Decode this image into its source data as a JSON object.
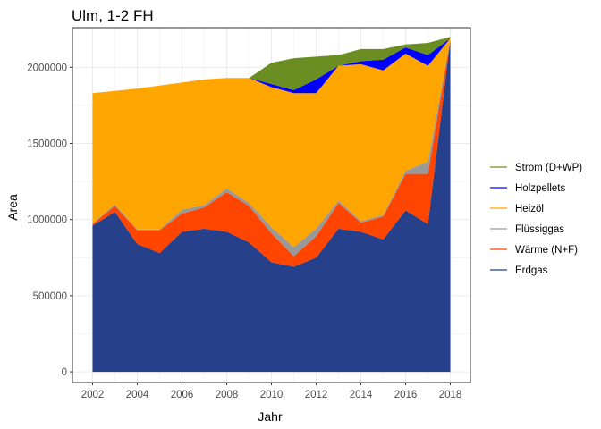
{
  "chart_data": {
    "type": "area",
    "stacked": true,
    "title": "Ulm, 1-2 FH",
    "xlabel": "Jahr",
    "ylabel": "Area",
    "x": [
      2002,
      2003,
      2004,
      2005,
      2006,
      2007,
      2008,
      2009,
      2010,
      2011,
      2012,
      2013,
      2014,
      2015,
      2016,
      2017,
      2018
    ],
    "xlim": [
      2001.1,
      2018.9
    ],
    "ylim": [
      -70000,
      2260000
    ],
    "x_ticks": [
      2002,
      2004,
      2006,
      2008,
      2010,
      2012,
      2014,
      2016,
      2018
    ],
    "y_ticks": [
      0,
      500000,
      1000000,
      1500000,
      2000000
    ],
    "y_tick_labels": [
      "0",
      "500000",
      "1000000",
      "1500000",
      "2000000"
    ],
    "grid": true,
    "legend_position": "right",
    "series": [
      {
        "name": "Erdgas",
        "color": "#27408B",
        "values": [
          960000,
          1050000,
          840000,
          780000,
          920000,
          940000,
          920000,
          850000,
          720000,
          690000,
          750000,
          940000,
          920000,
          870000,
          1060000,
          970000,
          2180000
        ]
      },
      {
        "name": "Wärme (N+F)",
        "color": "#FF4500",
        "values": [
          10000,
          40000,
          90000,
          150000,
          120000,
          140000,
          260000,
          240000,
          190000,
          70000,
          140000,
          170000,
          60000,
          150000,
          240000,
          330000,
          0
        ]
      },
      {
        "name": "Flüssiggas",
        "color": "#999999",
        "values": [
          5000,
          10000,
          5000,
          5000,
          25000,
          15000,
          25000,
          20000,
          40000,
          60000,
          50000,
          15000,
          10000,
          10000,
          20000,
          80000,
          5000
        ]
      },
      {
        "name": "Heizöl",
        "color": "#FFA500",
        "values": [
          855000,
          745000,
          925000,
          945000,
          835000,
          825000,
          725000,
          820000,
          920000,
          1010000,
          890000,
          885000,
          1030000,
          950000,
          770000,
          630000,
          5000
        ]
      },
      {
        "name": "Holzpellets",
        "color": "#0000FF",
        "values": [
          0,
          0,
          0,
          0,
          0,
          0,
          0,
          0,
          20000,
          20000,
          90000,
          0,
          20000,
          70000,
          40000,
          70000,
          0
        ]
      },
      {
        "name": "Strom (D+WP)",
        "color": "#6B8E23",
        "values": [
          0,
          0,
          0,
          0,
          0,
          0,
          0,
          0,
          140000,
          210000,
          150000,
          70000,
          80000,
          70000,
          20000,
          80000,
          10000
        ]
      }
    ],
    "legend_order": [
      "Strom (D+WP)",
      "Holzpellets",
      "Heizöl",
      "Flüssiggas",
      "Wärme (N+F)",
      "Erdgas"
    ]
  }
}
